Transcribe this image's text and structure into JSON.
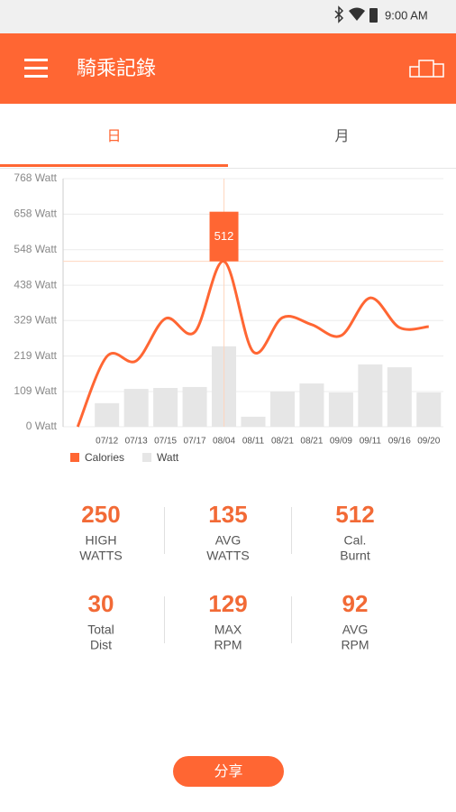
{
  "status_bar": {
    "time": "9:00 AM"
  },
  "app_bar": {
    "title": "騎乘記錄"
  },
  "tabs": [
    {
      "label": "日",
      "selected": true
    },
    {
      "label": "月",
      "selected": false
    }
  ],
  "chart_data": {
    "type": "combo",
    "categories": [
      null,
      "07/12",
      "07/13",
      "07/15",
      "07/17",
      "08/04",
      "08/11",
      "08/21",
      "08/21",
      "09/09",
      "09/11",
      "09/16",
      "09/20"
    ],
    "series": [
      {
        "name": "Calories",
        "type": "line",
        "color": "#ff6633",
        "values": [
          0,
          218,
          204,
          335,
          293,
          512,
          232,
          338,
          316,
          282,
          399,
          307,
          310
        ]
      },
      {
        "name": "Watt",
        "type": "bar",
        "color": "#e6e6e6",
        "values": [
          null,
          73,
          117,
          120,
          123,
          249,
          31,
          109,
          134,
          106,
          193,
          184,
          106
        ]
      }
    ],
    "ylim": [
      0,
      768
    ],
    "yticks": [
      {
        "value": 0,
        "label": "0 Watt"
      },
      {
        "value": 109,
        "label": "109 Watt"
      },
      {
        "value": 219,
        "label": "219 Watt"
      },
      {
        "value": 329,
        "label": "329 Watt"
      },
      {
        "value": 438,
        "label": "438 Watt"
      },
      {
        "value": 548,
        "label": "548 Watt"
      },
      {
        "value": 658,
        "label": "658 Watt"
      },
      {
        "value": 768,
        "label": "768 Watt"
      }
    ],
    "grid": true,
    "tooltip": "512",
    "legend": "bottom-left"
  },
  "stats": [
    {
      "value": 250,
      "label": [
        "HIGH",
        "WATTS"
      ]
    },
    {
      "value": 135,
      "label": [
        "AVG",
        "WATTS"
      ]
    },
    {
      "value": 512,
      "label": [
        "Cal.",
        "Burnt"
      ]
    },
    {
      "value": 30,
      "label": [
        "Total",
        "Dist"
      ]
    },
    {
      "value": 129,
      "label": [
        "MAX",
        "RPM"
      ]
    },
    {
      "value": 92,
      "label": [
        "AVG",
        "RPM"
      ]
    }
  ],
  "share_button": "分享"
}
